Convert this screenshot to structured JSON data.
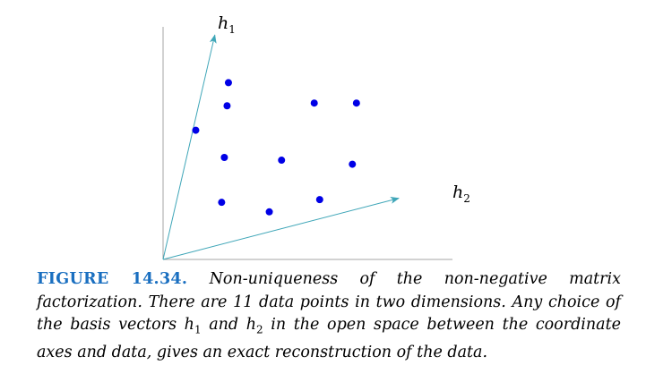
{
  "figure": {
    "axis_color": "#a6a6a6",
    "vector_color": "#3fa6b8",
    "point_color": "#0000e6",
    "h1_label": {
      "base": "h",
      "sub": "1"
    },
    "h2_label": {
      "base": "h",
      "sub": "2"
    }
  },
  "chart_data": {
    "type": "scatter",
    "points": [
      [
        4.8,
        13.0
      ],
      [
        4.7,
        11.3
      ],
      [
        2.4,
        9.5
      ],
      [
        4.5,
        7.5
      ],
      [
        8.7,
        7.3
      ],
      [
        11.1,
        11.5
      ],
      [
        14.2,
        11.5
      ],
      [
        13.9,
        7.0
      ],
      [
        4.3,
        4.2
      ],
      [
        7.8,
        3.5
      ],
      [
        11.5,
        4.4
      ]
    ],
    "vectors": [
      {
        "name": "h1",
        "x": 3.8,
        "y": 16.5
      },
      {
        "name": "h2",
        "x": 17.3,
        "y": 4.5
      }
    ],
    "xlim": [
      0,
      18
    ],
    "ylim": [
      0,
      17
    ]
  },
  "caption": {
    "label": "FIGURE 14.34.",
    "text_part1": "Non-uniqueness of the non-negative matrix factorization. There are 11 data points in two dimensions. Any choice of the basis vectors ",
    "h1": "h",
    "h1_sub": "1",
    "text_part2": " and ",
    "h2": "h",
    "h2_sub": "2",
    "text_part3": " in the open space between the coordinate axes and data, gives an exact reconstruction of the data."
  }
}
